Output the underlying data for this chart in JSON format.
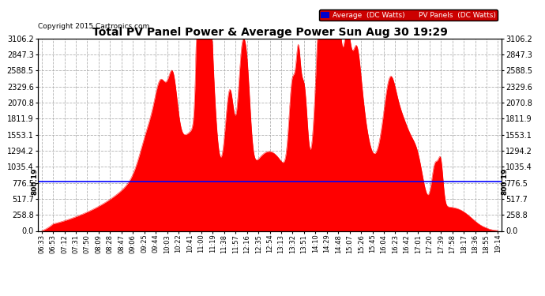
{
  "title": "Total PV Panel Power & Average Power Sun Aug 30 19:29",
  "copyright": "Copyright 2015 Cartronics.com",
  "avg_value": 800.19,
  "y_max": 3106.2,
  "y_ticks": [
    0.0,
    258.8,
    517.7,
    776.5,
    1035.4,
    1294.2,
    1553.1,
    1811.9,
    2070.8,
    2329.6,
    2588.5,
    2847.3,
    3106.2
  ],
  "x_labels": [
    "06:33",
    "06:53",
    "07:12",
    "07:31",
    "07:50",
    "08:09",
    "08:28",
    "08:47",
    "09:06",
    "09:25",
    "09:44",
    "10:03",
    "10:22",
    "10:41",
    "11:00",
    "11:19",
    "11:38",
    "11:57",
    "12:16",
    "12:35",
    "12:54",
    "13:13",
    "13:32",
    "13:51",
    "14:10",
    "14:29",
    "14:48",
    "15:07",
    "15:26",
    "15:45",
    "16:04",
    "16:23",
    "16:42",
    "17:01",
    "17:20",
    "17:39",
    "17:58",
    "18:17",
    "18:36",
    "18:55",
    "19:14"
  ],
  "fill_color": "#ff0000",
  "avg_line_color": "#0000ff",
  "bg_color": "#ffffff",
  "grid_color": "#aaaaaa",
  "title_color": "#000000",
  "avg_label": "Average  (DC Watts)",
  "pv_label": "PV Panels  (DC Watts)",
  "avg_legend_bg": "#0000cc",
  "pv_legend_bg": "#cc0000"
}
